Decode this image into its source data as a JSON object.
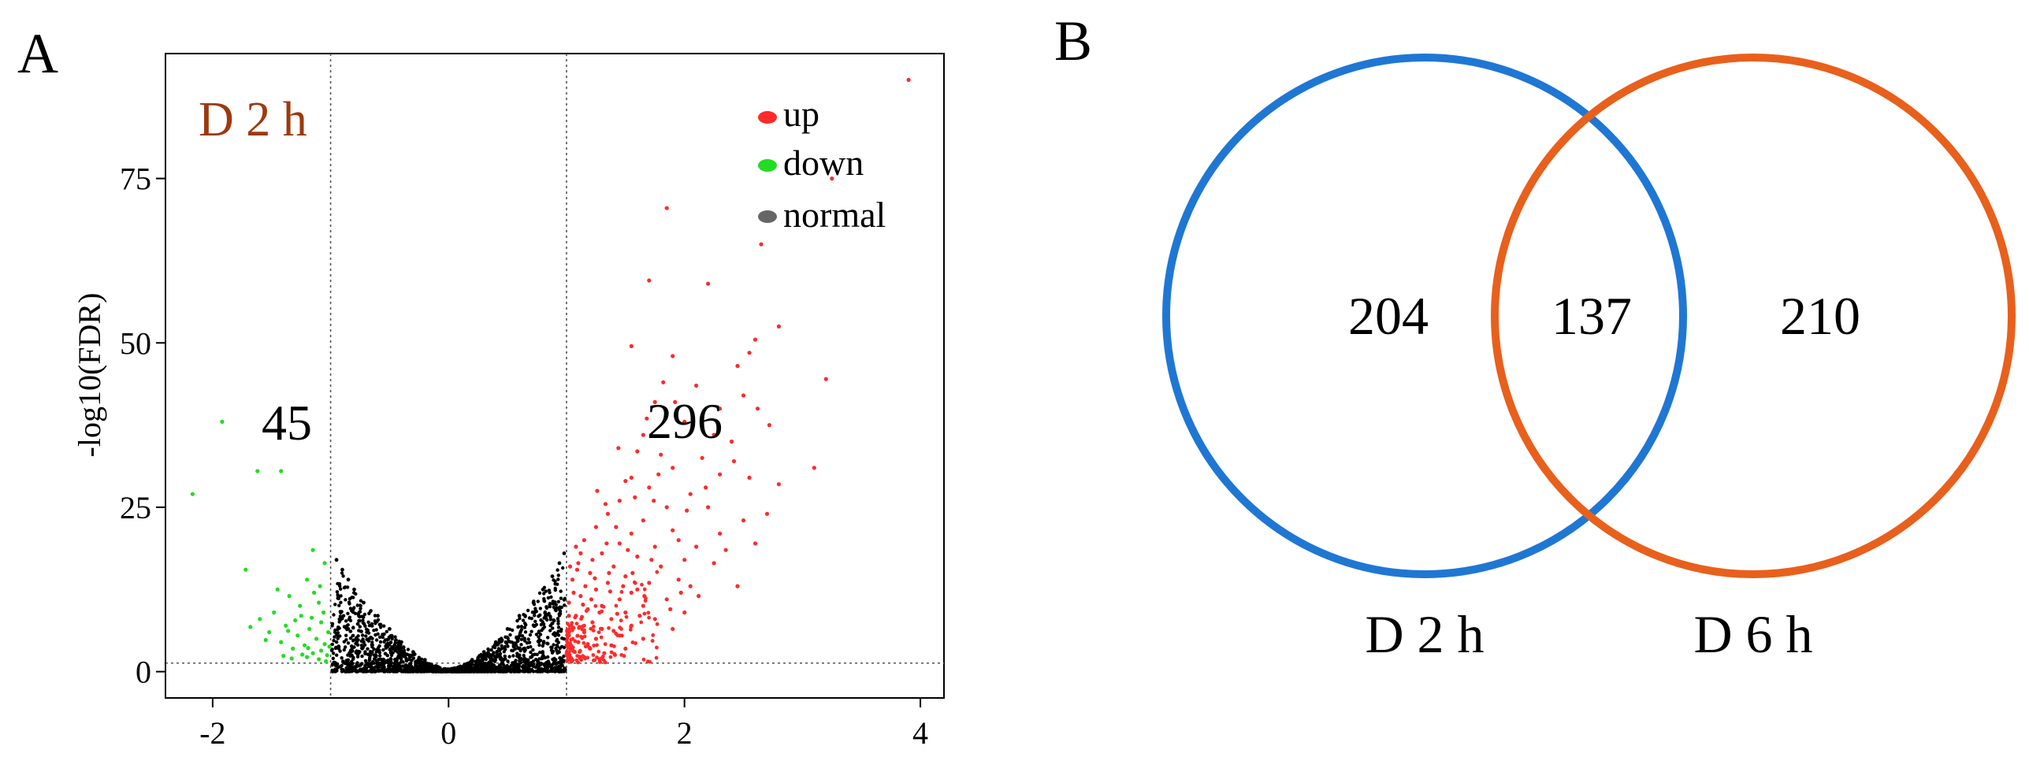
{
  "figure": {
    "panel_a_label": "A",
    "panel_b_label": "B"
  },
  "chart_data": [
    {
      "type": "scatter",
      "subtype": "volcano",
      "title": "D 2 h",
      "xlabel": "",
      "ylabel": "-log10(FDR)",
      "xlim": [
        -2.4,
        4.2
      ],
      "ylim": [
        -4,
        94
      ],
      "x_ticks": [
        -2,
        0,
        2,
        4
      ],
      "y_ticks": [
        0,
        25,
        50,
        75
      ],
      "grid": false,
      "thresholds": {
        "log2fc_low": -1,
        "log2fc_high": 1,
        "neg_log10_fdr": 1.3
      },
      "annotations": {
        "down_count": "45",
        "up_count": "296"
      },
      "legend": {
        "position": "top-right",
        "entries": [
          {
            "label": "up",
            "color": "#ff2a2a"
          },
          {
            "label": "down",
            "color": "#22dd22"
          },
          {
            "label": "normal",
            "color": "#666666"
          }
        ]
      },
      "series": [
        {
          "name": "up",
          "color": "#ff2a2a",
          "points": [
            [
              3.9,
              90
            ],
            [
              3.25,
              75
            ],
            [
              1.85,
              70.5
            ],
            [
              2.65,
              65
            ],
            [
              1.7,
              59.5
            ],
            [
              2.2,
              59
            ],
            [
              2.8,
              52.5
            ],
            [
              2.6,
              50.5
            ],
            [
              1.55,
              49.5
            ],
            [
              2.55,
              48.5
            ],
            [
              1.9,
              48
            ],
            [
              2.45,
              46.5
            ],
            [
              3.2,
              44.5
            ],
            [
              2.1,
              43.5
            ],
            [
              2.5,
              42
            ],
            [
              1.75,
              41
            ],
            [
              2.3,
              40
            ],
            [
              2.0,
              38
            ],
            [
              1.65,
              36
            ],
            [
              2.4,
              35
            ],
            [
              1.6,
              33.5
            ],
            [
              2.15,
              32.5
            ],
            [
              1.9,
              31
            ],
            [
              3.1,
              31
            ],
            [
              2.3,
              30
            ],
            [
              1.55,
              29.5
            ],
            [
              2.55,
              29.5
            ],
            [
              1.7,
              28
            ],
            [
              2.05,
              27
            ],
            [
              2.8,
              28.5
            ],
            [
              1.45,
              26
            ],
            [
              1.85,
              25
            ],
            [
              2.2,
              25
            ],
            [
              1.35,
              24
            ],
            [
              1.65,
              23
            ],
            [
              2.5,
              23
            ],
            [
              1.25,
              22
            ],
            [
              1.55,
              21
            ],
            [
              1.9,
              21.5
            ],
            [
              2.3,
              21
            ],
            [
              1.15,
              20
            ],
            [
              1.45,
              19.5
            ],
            [
              1.75,
              19
            ],
            [
              2.1,
              19
            ],
            [
              1.3,
              18
            ],
            [
              1.6,
              17.5
            ],
            [
              2.0,
              17
            ],
            [
              1.1,
              16.5
            ],
            [
              1.4,
              16
            ],
            [
              1.8,
              16
            ],
            [
              2.25,
              16.5
            ],
            [
              1.2,
              15
            ],
            [
              1.5,
              14.5
            ],
            [
              1.05,
              14
            ],
            [
              1.35,
              13.5
            ],
            [
              1.7,
              13.5
            ],
            [
              2.05,
              13
            ],
            [
              1.25,
              12.5
            ],
            [
              1.55,
              12
            ],
            [
              1.12,
              11.5
            ],
            [
              1.45,
              11
            ],
            [
              1.85,
              11
            ],
            [
              1.02,
              10.5
            ],
            [
              1.3,
              10
            ],
            [
              1.65,
              10
            ],
            [
              1.18,
              9.5
            ],
            [
              1.5,
              9
            ],
            [
              2.0,
              9
            ],
            [
              1.08,
              8.5
            ],
            [
              1.38,
              8
            ],
            [
              1.75,
              8
            ],
            [
              1.22,
              7.5
            ],
            [
              1.55,
              7
            ],
            [
              1.04,
              7
            ],
            [
              1.3,
              6.5
            ],
            [
              1.9,
              6.5
            ],
            [
              1.15,
              6
            ],
            [
              1.45,
              5.5
            ],
            [
              1.02,
              5.5
            ],
            [
              1.25,
              5
            ],
            [
              1.65,
              5
            ],
            [
              1.1,
              4.5
            ],
            [
              1.38,
              4
            ],
            [
              1.03,
              4
            ],
            [
              1.2,
              3.5
            ],
            [
              1.5,
              3.5
            ],
            [
              1.07,
              3
            ],
            [
              1.32,
              2.8
            ],
            [
              1.01,
              2.5
            ],
            [
              1.15,
              2.2
            ],
            [
              1.28,
              1.9
            ],
            [
              1.05,
              1.7
            ],
            [
              1.6,
              12.5
            ],
            [
              1.95,
              14
            ],
            [
              2.35,
              18.5
            ],
            [
              2.7,
              24
            ],
            [
              1.12,
              18
            ],
            [
              1.42,
              22
            ],
            [
              1.58,
              26.5
            ],
            [
              1.8,
              33
            ],
            [
              1.68,
              38.5
            ],
            [
              1.28,
              9
            ],
            [
              1.48,
              13
            ],
            [
              1.72,
              17
            ],
            [
              1.88,
              9.5
            ],
            [
              2.12,
              11.5
            ],
            [
              2.45,
              13
            ],
            [
              1.16,
              13
            ],
            [
              1.36,
              15
            ],
            [
              1.06,
              12
            ],
            [
              1.22,
              17
            ],
            [
              1.52,
              18.5
            ],
            [
              2.6,
              19.5
            ],
            [
              1.02,
              8.5
            ],
            [
              1.08,
              19
            ],
            [
              1.33,
              25.5
            ],
            [
              1.78,
              30
            ],
            [
              2.02,
              24.5
            ],
            [
              1.62,
              8.5
            ],
            [
              1.4,
              6.2
            ],
            [
              1.18,
              4.2
            ],
            [
              1.95,
              20
            ],
            [
              1.14,
              10.2
            ],
            [
              1.5,
              29
            ],
            [
              2.25,
              36
            ],
            [
              2.62,
              40
            ],
            [
              1.82,
              44
            ],
            [
              1.44,
              34
            ],
            [
              1.74,
              26
            ],
            [
              1.26,
              27.5
            ],
            [
              2.18,
              28
            ],
            [
              2.42,
              32
            ],
            [
              1.92,
              41
            ],
            [
              2.72,
              37.5
            ],
            [
              1.09,
              15.5
            ],
            [
              1.34,
              19.5
            ],
            [
              1.56,
              15
            ],
            [
              1.21,
              11
            ],
            [
              1.43,
              8.8
            ],
            [
              1.66,
              11.5
            ],
            [
              1.97,
              12
            ],
            [
              1.11,
              6.8
            ],
            [
              1.37,
              12.2
            ],
            [
              1.03,
              16
            ],
            [
              1.24,
              14.2
            ]
          ]
        },
        {
          "name": "down",
          "color": "#22dd22",
          "points": [
            [
              -1.92,
              38
            ],
            [
              -1.62,
              30.5
            ],
            [
              -1.42,
              30.5
            ],
            [
              -2.17,
              27
            ],
            [
              -1.72,
              15.5
            ],
            [
              -1.15,
              18.5
            ],
            [
              -1.2,
              14
            ],
            [
              -1.05,
              16.5
            ],
            [
              -1.35,
              11.5
            ],
            [
              -1.1,
              10.5
            ],
            [
              -1.48,
              9
            ],
            [
              -1.25,
              8.5
            ],
            [
              -1.6,
              8
            ],
            [
              -1.08,
              7.5
            ],
            [
              -1.38,
              7
            ],
            [
              -1.18,
              6.5
            ],
            [
              -1.52,
              6
            ],
            [
              -1.02,
              6
            ],
            [
              -1.28,
              5.5
            ],
            [
              -1.12,
              5
            ],
            [
              -1.42,
              4.5
            ],
            [
              -1.05,
              4.2
            ],
            [
              -1.22,
              4
            ],
            [
              -1.32,
              3.5
            ],
            [
              -1.08,
              3.2
            ],
            [
              -1.15,
              2.8
            ],
            [
              -1.03,
              2.5
            ],
            [
              -1.2,
              2.2
            ],
            [
              -1.1,
              1.9
            ],
            [
              -1.04,
              1.6
            ],
            [
              -1.26,
              10
            ],
            [
              -1.45,
              12.5
            ],
            [
              -1.14,
              12
            ],
            [
              -1.3,
              7.8
            ],
            [
              -1.55,
              4.8
            ],
            [
              -1.06,
              9
            ],
            [
              -1.36,
              6.2
            ],
            [
              -1.19,
              3.6
            ],
            [
              -1.68,
              6.8
            ],
            [
              -1.01,
              3.8
            ],
            [
              -1.24,
              2.6
            ],
            [
              -1.09,
              13
            ],
            [
              -1.4,
              2.4
            ],
            [
              -1.16,
              8.2
            ],
            [
              -1.33,
              2
            ]
          ]
        },
        {
          "name": "normal",
          "color": "#000000",
          "description_of_cloud": "dense V-shaped cloud of non-significant genes between log2FC -1 and 1",
          "points": [
            [
              -0.95,
              17
            ],
            [
              -0.9,
              15.5
            ],
            [
              -0.85,
              14
            ],
            [
              -0.8,
              12.5
            ],
            [
              -0.72,
              10.5
            ],
            [
              -0.6,
              8.5
            ],
            [
              -0.5,
              6.5
            ],
            [
              -0.4,
              4.5
            ],
            [
              -0.3,
              3
            ],
            [
              -0.2,
              1.8
            ],
            [
              -0.1,
              0.8
            ],
            [
              0,
              0.2
            ],
            [
              0.1,
              0.8
            ],
            [
              0.2,
              1.8
            ],
            [
              0.3,
              3
            ],
            [
              0.4,
              4.5
            ],
            [
              0.5,
              6.5
            ],
            [
              0.6,
              8.5
            ],
            [
              0.72,
              10.5
            ],
            [
              0.8,
              12.5
            ],
            [
              0.88,
              14.5
            ],
            [
              0.94,
              16.5
            ],
            [
              0.98,
              18
            ]
          ]
        }
      ]
    },
    {
      "type": "venn",
      "sets": [
        {
          "name": "D 2 h",
          "color": "#1f77d4",
          "only": "204"
        },
        {
          "name": "D 6 h",
          "color": "#e8601c",
          "only": "210"
        }
      ],
      "intersection": "137"
    }
  ]
}
